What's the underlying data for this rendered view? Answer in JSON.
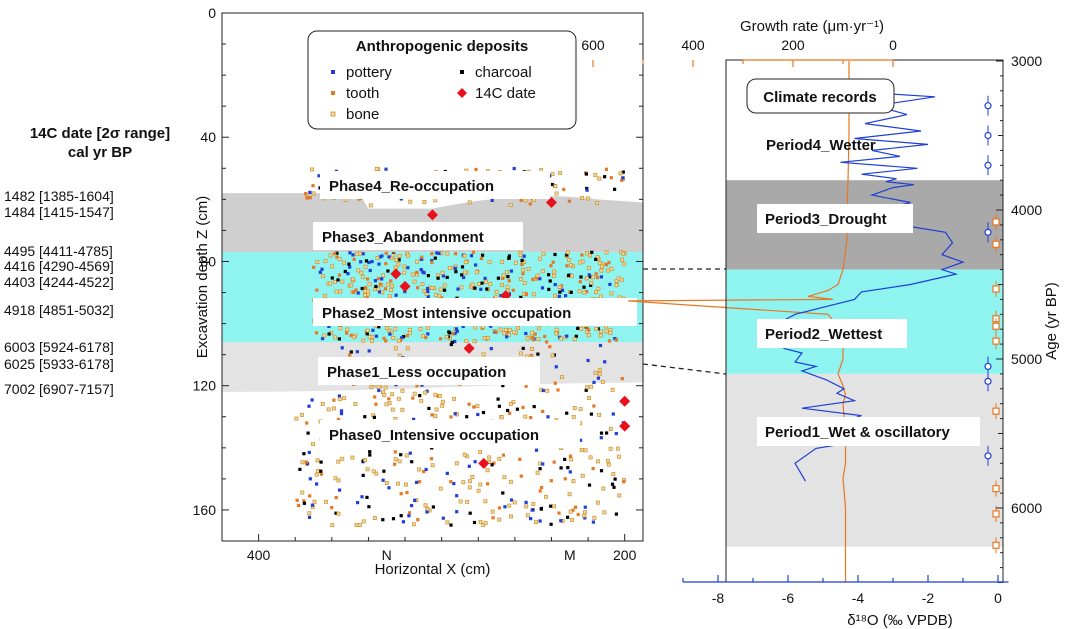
{
  "date_table": {
    "header_line1": "14C date [2σ range]",
    "header_line2": "cal yr BP",
    "rows": [
      {
        "label": "1482 [1385-1604]",
        "depth": 61
      },
      {
        "label": "1484 [1415-1547]",
        "depth": 66
      },
      {
        "label": "4495 [4411-4785]",
        "depth": 78.5
      },
      {
        "label": "4416 [4290-4569]",
        "depth": 83.5
      },
      {
        "label": "4403 [4244-4522]",
        "depth": 88.5
      },
      {
        "label": "4918 [4851-5032]",
        "depth": 97.5
      },
      {
        "label": "6003 [5924-6178]",
        "depth": 109.5
      },
      {
        "label": "6025 [5933-6178]",
        "depth": 115
      },
      {
        "label": "7002 [6907-7157]",
        "depth": 123
      }
    ]
  },
  "chart_data": [
    {
      "type": "scatter",
      "xlabel": "Horizontal X (cm)",
      "ylabel": "Excavation depth Z (cm)",
      "xlim": [
        420,
        190
      ],
      "ylim": [
        0,
        170
      ],
      "yticks": [
        0,
        40,
        80,
        120,
        160
      ],
      "xticks": [
        400,
        200
      ],
      "x_markers": [
        {
          "label": "N",
          "x": 330
        },
        {
          "label": "M",
          "x": 230
        }
      ],
      "legend": {
        "title": "Anthropogenic deposits",
        "items": [
          {
            "label": "pottery",
            "color": "#1f3fd6",
            "marker": "square"
          },
          {
            "label": "charcoal",
            "color": "#000000",
            "marker": "square"
          },
          {
            "label": "tooth",
            "color": "#e87722",
            "marker": "square"
          },
          {
            "label": "14C date",
            "color": "#e8101a",
            "marker": "diamond"
          },
          {
            "label": "bone",
            "color": "#c8912e",
            "marker": "square-open"
          }
        ]
      },
      "phase_bands": [
        {
          "label": "Phase4_Re-occupation",
          "color": "#ffffff"
        },
        {
          "label": "Phase3_Abandonment",
          "color": "#cfcfcf",
          "from": 58,
          "to": 77
        },
        {
          "label": "Phase2_Most intensive occupation",
          "color": "#8ff4f0",
          "from": 77,
          "to": 106
        },
        {
          "label": "Phase1_Less occupation",
          "color": "#e3e3e3",
          "from": 106,
          "to": 122
        },
        {
          "label": "Phase0_Intensive occupation",
          "color": "#ffffff"
        }
      ],
      "c14_points": [
        {
          "x": 325,
          "z": 84
        },
        {
          "x": 320,
          "z": 88
        },
        {
          "x": 305,
          "z": 65
        },
        {
          "x": 265,
          "z": 91
        },
        {
          "x": 285,
          "z": 108
        },
        {
          "x": 240,
          "z": 61
        },
        {
          "x": 200,
          "z": 125
        },
        {
          "x": 200,
          "z": 133
        },
        {
          "x": 277,
          "z": 145
        }
      ],
      "artifact_clusters": [
        {
          "phase": "Phase4_Re-occupation",
          "z_range": [
            50,
            62
          ],
          "x_range": [
            200,
            375
          ],
          "count": 140
        },
        {
          "phase": "Phase2_Most intensive occupation",
          "z_range": [
            77,
            106
          ],
          "x_range": [
            200,
            370
          ],
          "count": 620
        },
        {
          "phase": "Phase1_Less occupation",
          "z_range": [
            106,
            122
          ],
          "x_range": [
            200,
            355
          ],
          "count": 90
        },
        {
          "phase": "Phase0_Intensive occupation",
          "z_range": [
            122,
            165
          ],
          "x_range": [
            200,
            380
          ],
          "count": 380
        }
      ]
    },
    {
      "type": "line",
      "title": "Climate records",
      "top_axis_label": "Growth rate (μm·yr⁻¹)",
      "top_axis_ticks": [
        600,
        400,
        200,
        0
      ],
      "top_axis_color": "#e87722",
      "bottom_axis_label": "δ¹⁸O (‰ VPDB)",
      "bottom_axis_ticks": [
        -8,
        -6,
        -4,
        -2,
        0
      ],
      "bottom_axis_color": "#1f3fd6",
      "right_axis_label": "Age (yr BP)",
      "right_axis_ticks": [
        3000,
        4000,
        5000,
        6000
      ],
      "ylim": [
        3000,
        6500
      ],
      "periods": [
        {
          "label": "Period4_Wetter",
          "from": 3000,
          "to": 3800,
          "color": "#ffffff"
        },
        {
          "label": "Period3_Drought",
          "from": 3800,
          "to": 4400,
          "color": "#a9a9a9"
        },
        {
          "label": "Period2_Wettest",
          "from": 4400,
          "to": 5100,
          "color": "#8ff4f0"
        },
        {
          "label": "Period1_Wet & oscillatory",
          "from": 5100,
          "to": 6260,
          "color": "#e3e3e3"
        }
      ],
      "series": [
        {
          "name": "δ18O",
          "color": "#1f3fd6",
          "x": [
            -3.8,
            -1.8,
            -3.5,
            -2.6,
            -3.8,
            -2.2,
            -4.1,
            -2.0,
            -3.6,
            -2.8,
            -4.5,
            -2.3,
            -3.9,
            -2.9,
            -3.2,
            -2.4,
            -3.0,
            -3.6,
            -2.5,
            -3.3,
            -3.2,
            -2.8,
            -1.5,
            -1.3,
            -1.6,
            -1.0,
            -1.6,
            -1.2,
            -2.5,
            -3.9,
            -4.1,
            -5.8,
            -6.2,
            -6.6,
            -6.1,
            -5.6,
            -5.8,
            -5.2,
            -5.6,
            -4.9,
            -4.4,
            -4.6,
            -4.1,
            -5.6,
            -3.9,
            -4.5,
            -3.6,
            -4.4,
            -3.9,
            -5.2,
            -5.8,
            -5.5
          ],
          "y": [
            3210,
            3240,
            3300,
            3360,
            3420,
            3470,
            3520,
            3560,
            3600,
            3640,
            3680,
            3720,
            3760,
            3790,
            3810,
            3830,
            3850,
            3900,
            3950,
            4000,
            4050,
            4100,
            4150,
            4220,
            4300,
            4350,
            4400,
            4430,
            4500,
            4550,
            4600,
            4700,
            4750,
            4850,
            4930,
            4960,
            5020,
            5050,
            5080,
            5140,
            5200,
            5230,
            5280,
            5330,
            5380,
            5430,
            5480,
            5520,
            5550,
            5600,
            5700,
            5820
          ]
        },
        {
          "name": "Growth rate",
          "color": "#e87722",
          "x": [
            88,
            88,
            90,
            92,
            92,
            96,
            100,
            110,
            130,
            170,
            120,
            530,
            400,
            130,
            105,
            100,
            100,
            110,
            100,
            95,
            100,
            95,
            95,
            100,
            95,
            95,
            95,
            95
          ],
          "y": [
            3000,
            3500,
            3800,
            4000,
            4200,
            4300,
            4400,
            4500,
            4540,
            4580,
            4600,
            4610,
            4640,
            4700,
            4800,
            4900,
            5000,
            5100,
            5180,
            5240,
            5300,
            5500,
            5700,
            5800,
            6000,
            6200,
            6300,
            6500
          ]
        }
      ],
      "dated_samples": [
        {
          "age": 3300,
          "marker": "circle",
          "color": "#1f3fd6"
        },
        {
          "age": 3500,
          "marker": "circle",
          "color": "#1f3fd6"
        },
        {
          "age": 3700,
          "marker": "circle",
          "color": "#1f3fd6"
        },
        {
          "age": 4150,
          "marker": "circle",
          "color": "#1f3fd6"
        },
        {
          "age": 4080,
          "marker": "square",
          "color": "#e87722"
        },
        {
          "age": 4230,
          "marker": "square",
          "color": "#e87722"
        },
        {
          "age": 4530,
          "marker": "square",
          "color": "#e87722"
        },
        {
          "age": 4730,
          "marker": "square",
          "color": "#e87722"
        },
        {
          "age": 4780,
          "marker": "square",
          "color": "#e87722"
        },
        {
          "age": 4880,
          "marker": "square",
          "color": "#e87722"
        },
        {
          "age": 5050,
          "marker": "circle",
          "color": "#1f3fd6"
        },
        {
          "age": 5150,
          "marker": "circle",
          "color": "#1f3fd6"
        },
        {
          "age": 5350,
          "marker": "square",
          "color": "#e87722"
        },
        {
          "age": 5650,
          "marker": "circle",
          "color": "#1f3fd6"
        },
        {
          "age": 5870,
          "marker": "square",
          "color": "#e87722"
        },
        {
          "age": 6040,
          "marker": "square",
          "color": "#e87722"
        },
        {
          "age": 6250,
          "marker": "square",
          "color": "#e87722"
        }
      ]
    }
  ]
}
